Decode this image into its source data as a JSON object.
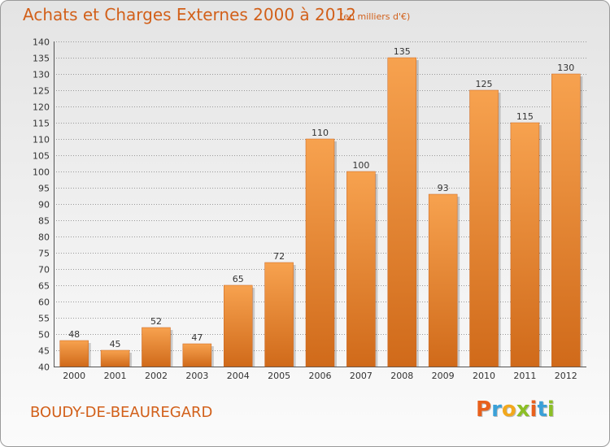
{
  "title": "Achats et Charges Externes 2000 à 2012",
  "subtitle": "(en milliers d'€)",
  "town": "BOUDY-DE-BEAUREGARD",
  "logo": {
    "text": "Proxiti",
    "letters": [
      {
        "ch": "P",
        "color": "#e8601c"
      },
      {
        "ch": "r",
        "color": "#3aa0d8"
      },
      {
        "ch": "o",
        "color": "#f2a81d"
      },
      {
        "ch": "x",
        "color": "#8cbf26"
      },
      {
        "ch": "i",
        "color": "#e8601c"
      },
      {
        "ch": "t",
        "color": "#3aa0d8"
      },
      {
        "ch": "i",
        "color": "#8cbf26"
      }
    ]
  },
  "colors": {
    "bar_light": "#f7a24f",
    "bar_dark": "#d06a1a",
    "title": "#d2601a",
    "grid": "#9a9a9a"
  },
  "chart_data": {
    "type": "bar",
    "title": "Achats et Charges Externes 2000 à 2012",
    "subtitle": "(en milliers d'€)",
    "categories": [
      "2000",
      "2001",
      "2002",
      "2003",
      "2004",
      "2005",
      "2006",
      "2007",
      "2008",
      "2009",
      "2010",
      "2011",
      "2012"
    ],
    "values": [
      48,
      45,
      52,
      47,
      65,
      72,
      110,
      100,
      135,
      93,
      125,
      115,
      130
    ],
    "ylim": [
      40,
      140
    ],
    "ytick_step": 5,
    "grid": true,
    "xlabel": "",
    "ylabel": ""
  }
}
